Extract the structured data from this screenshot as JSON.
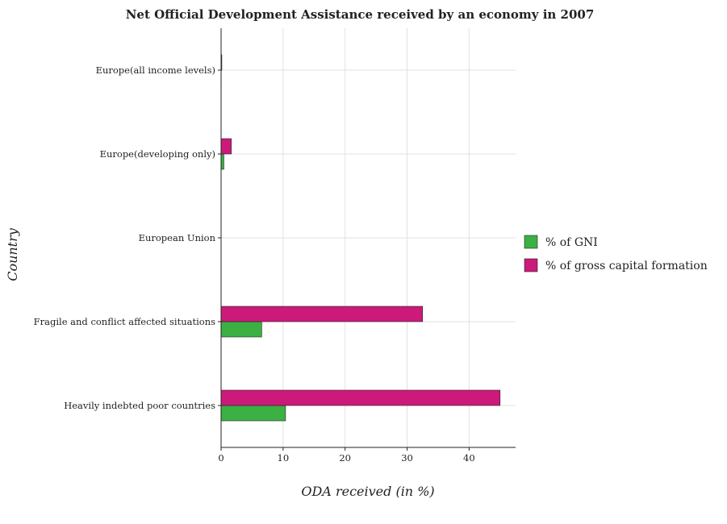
{
  "chart_data": {
    "type": "bar",
    "orientation": "horizontal",
    "title": "Net Official Development Assistance received by an economy in 2007",
    "xlabel": "ODA received (in %)",
    "ylabel": "Country",
    "categories": [
      "Europe(all income levels)",
      "Europe(developing only)",
      "European Union",
      "Fragile and conflict affected situations",
      "Heavily indebted poor countries"
    ],
    "series": [
      {
        "name": "% of GNI",
        "color": "#3cb043",
        "values": [
          0.03,
          0.45,
          0.0,
          6.55,
          10.4
        ]
      },
      {
        "name": "% of gross capital formation",
        "color": "#cc1a7a",
        "values": [
          0.12,
          1.65,
          0.0,
          32.5,
          45.0
        ]
      }
    ],
    "xlim": [
      0,
      47.5
    ],
    "xticks": [
      0,
      10,
      20,
      30,
      40
    ],
    "grid": true,
    "legend_position": "right"
  }
}
